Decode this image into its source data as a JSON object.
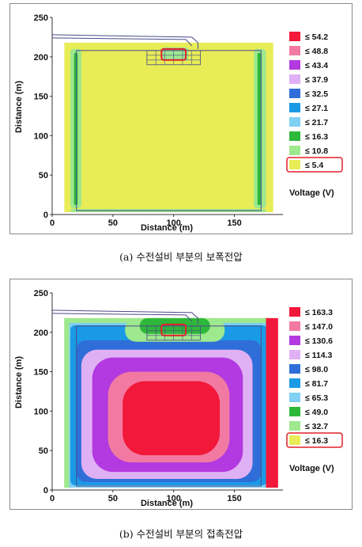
{
  "chart_data": [
    {
      "type": "heatmap",
      "xlabel": "Distance (m)",
      "ylabel": "Distance (m)",
      "xlim": [
        0,
        190
      ],
      "ylim": [
        0,
        250
      ],
      "xticks": [
        "0",
        "50",
        "100",
        "150"
      ],
      "yticks": [
        "0",
        "50",
        "100",
        "150",
        "200",
        "250"
      ],
      "legend_title": "Voltage (V)",
      "legend_placement": "right",
      "legend": [
        {
          "label": "≤ 54.2",
          "color": "#f2183a"
        },
        {
          "label": "≤ 48.8",
          "color": "#f27aa2"
        },
        {
          "label": "≤ 43.4",
          "color": "#b23ae0"
        },
        {
          "label": "≤ 37.9",
          "color": "#e0b0f4"
        },
        {
          "label": "≤ 32.5",
          "color": "#2f6ed8"
        },
        {
          "label": "≤ 27.1",
          "color": "#1a9ae6"
        },
        {
          "label": "≤ 21.7",
          "color": "#7fd0f2"
        },
        {
          "label": "≤ 16.3",
          "color": "#2eb83a"
        },
        {
          "label": "≤ 10.8",
          "color": "#9ee88e"
        },
        {
          "label": "≤ 5.4",
          "color": "#e8ec56"
        }
      ],
      "highlighted_legend": "≤ 5.4",
      "caption": "(a) 수전설비 부분의 보폭전압"
    },
    {
      "type": "heatmap",
      "xlabel": "Distance (m)",
      "ylabel": "Distance (m)",
      "xlim": [
        0,
        190
      ],
      "ylim": [
        0,
        250
      ],
      "xticks": [
        "0",
        "50",
        "100",
        "150"
      ],
      "yticks": [
        "0",
        "50",
        "100",
        "150",
        "200",
        "250"
      ],
      "legend_title": "Voltage (V)",
      "legend_placement": "right",
      "legend": [
        {
          "label": "≤ 163.3",
          "color": "#f2183a"
        },
        {
          "label": "≤ 147.0",
          "color": "#f27aa2"
        },
        {
          "label": "≤ 130.6",
          "color": "#b23ae0"
        },
        {
          "label": "≤ 114.3",
          "color": "#e0b0f4"
        },
        {
          "label": "≤ 98.0",
          "color": "#2f6ed8"
        },
        {
          "label": "≤ 81.7",
          "color": "#1a9ae6"
        },
        {
          "label": "≤ 65.3",
          "color": "#7fd0f2"
        },
        {
          "label": "≤ 49.0",
          "color": "#2eb83a"
        },
        {
          "label": "≤ 32.7",
          "color": "#9ee88e"
        },
        {
          "label": "≤ 16.3",
          "color": "#e8ec56"
        }
      ],
      "highlighted_legend": "≤ 16.3",
      "caption": "(b) 수전설비 부분의 접촉전압"
    }
  ]
}
